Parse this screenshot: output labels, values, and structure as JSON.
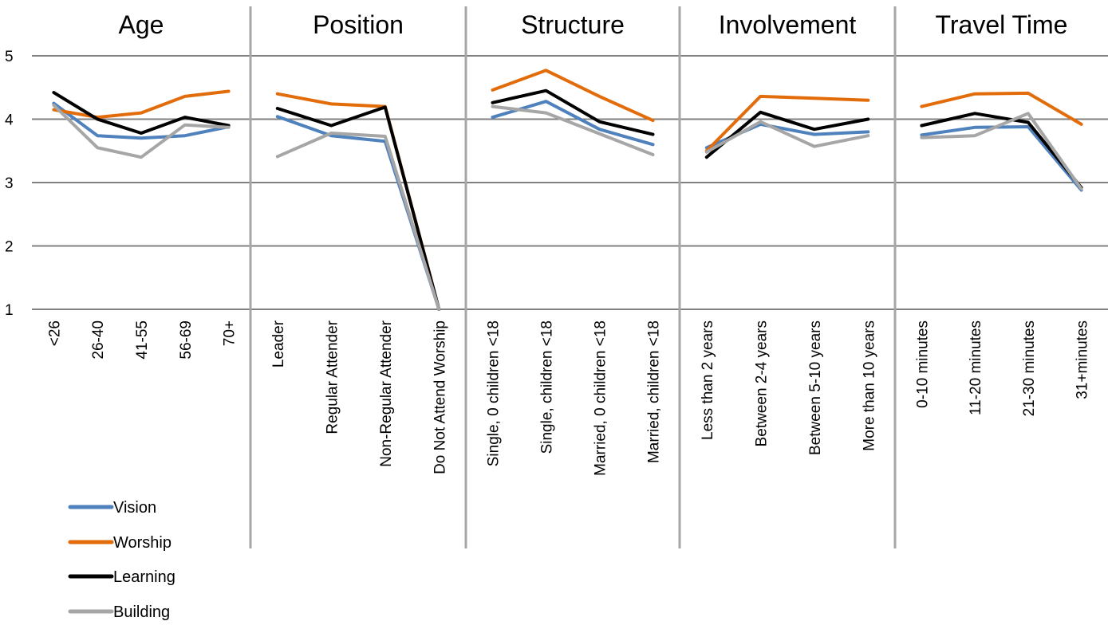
{
  "chart_data": {
    "type": "line",
    "ylim": [
      1,
      5
    ],
    "yticks": [
      "1",
      "2",
      "3",
      "4",
      "5"
    ],
    "grid": true,
    "legend": "bottom-left",
    "series_names": [
      "Vision",
      "Worship",
      "Learning",
      "Building"
    ],
    "colors": {
      "Vision": "#4f81bd",
      "Worship": "#e36c0a",
      "Learning": "#000000",
      "Building": "#a6a6a6"
    },
    "panels": [
      {
        "title": "Age",
        "categories": [
          "<26",
          "26-40",
          "41-55",
          "56-69",
          "70+"
        ],
        "series": [
          {
            "name": "Vision",
            "values": [
              4.25,
              3.74,
              3.7,
              3.74,
              3.88
            ]
          },
          {
            "name": "Worship",
            "values": [
              4.15,
              4.03,
              4.1,
              4.36,
              4.44
            ]
          },
          {
            "name": "Learning",
            "values": [
              4.42,
              4.0,
              3.78,
              4.03,
              3.9
            ]
          },
          {
            "name": "Building",
            "values": [
              4.22,
              3.55,
              3.4,
              3.91,
              3.87
            ]
          }
        ]
      },
      {
        "title": "Position",
        "categories": [
          "Leader",
          "Regular Attender",
          "Non-Regular Attender",
          "Do Not Attend Worship"
        ],
        "series": [
          {
            "name": "Vision",
            "values": [
              4.04,
              3.74,
              3.65,
              1.0
            ]
          },
          {
            "name": "Worship",
            "values": [
              4.4,
              4.24,
              4.2,
              1.0
            ]
          },
          {
            "name": "Learning",
            "values": [
              4.17,
              3.9,
              4.19,
              1.0
            ]
          },
          {
            "name": "Building",
            "values": [
              3.41,
              3.78,
              3.73,
              1.0
            ]
          }
        ]
      },
      {
        "title": "Structure",
        "categories": [
          "Single, 0 children <18",
          "Single, children <18",
          "Married, 0 children <18",
          "Married, children <18"
        ],
        "series": [
          {
            "name": "Vision",
            "values": [
              4.03,
              4.28,
              3.84,
              3.6
            ]
          },
          {
            "name": "Worship",
            "values": [
              4.46,
              4.77,
              4.36,
              3.98
            ]
          },
          {
            "name": "Learning",
            "values": [
              4.26,
              4.45,
              3.96,
              3.76
            ]
          },
          {
            "name": "Building",
            "values": [
              4.2,
              4.1,
              3.77,
              3.44
            ]
          }
        ]
      },
      {
        "title": "Involvement",
        "categories": [
          "Less than 2 years",
          "Between 2-4 years",
          "Between 5-10 years",
          "More than 10 years"
        ],
        "series": [
          {
            "name": "Vision",
            "values": [
              3.55,
              3.92,
              3.76,
              3.8
            ]
          },
          {
            "name": "Worship",
            "values": [
              3.5,
              4.36,
              4.33,
              4.3
            ]
          },
          {
            "name": "Learning",
            "values": [
              3.4,
              4.11,
              3.84,
              4.0
            ]
          },
          {
            "name": "Building",
            "values": [
              3.48,
              3.96,
              3.57,
              3.74
            ]
          }
        ]
      },
      {
        "title": "Travel Time",
        "categories": [
          "0-10 minutes",
          "11-20 minutes",
          "21-30 minutes",
          "31+minutes"
        ],
        "series": [
          {
            "name": "Vision",
            "values": [
              3.75,
              3.87,
              3.88,
              2.88
            ]
          },
          {
            "name": "Worship",
            "values": [
              4.2,
              4.4,
              4.41,
              3.92
            ]
          },
          {
            "name": "Learning",
            "values": [
              3.9,
              4.09,
              3.95,
              2.92
            ]
          },
          {
            "name": "Building",
            "values": [
              3.71,
              3.74,
              4.09,
              2.9
            ]
          }
        ]
      }
    ]
  }
}
